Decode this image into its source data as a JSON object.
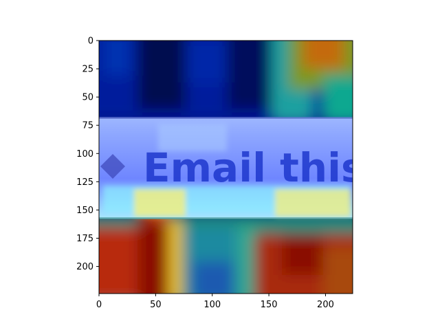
{
  "chart_data": {
    "type": "heatmap",
    "title": "",
    "xlabel": "",
    "ylabel": "",
    "xlim": [
      0,
      224
    ],
    "ylim": [
      224,
      0
    ],
    "x_ticks": [
      0,
      50,
      100,
      150,
      200
    ],
    "y_ticks": [
      0,
      25,
      50,
      75,
      100,
      125,
      150,
      175,
      200
    ],
    "x_tick_labels": [
      "0",
      "50",
      "100",
      "150",
      "200"
    ],
    "y_tick_labels": [
      "0",
      "25",
      "50",
      "75",
      "100",
      "125",
      "150",
      "175",
      "200"
    ],
    "colormap": "jet",
    "grid": false,
    "legend": "none",
    "underlying_image_text": "Email this",
    "banner_rows": [
      68,
      157
    ],
    "colors": {
      "background": "#ffffff",
      "axis": "#000000",
      "banner_overlay": "#7f7fff",
      "text": "#1630c8"
    }
  }
}
